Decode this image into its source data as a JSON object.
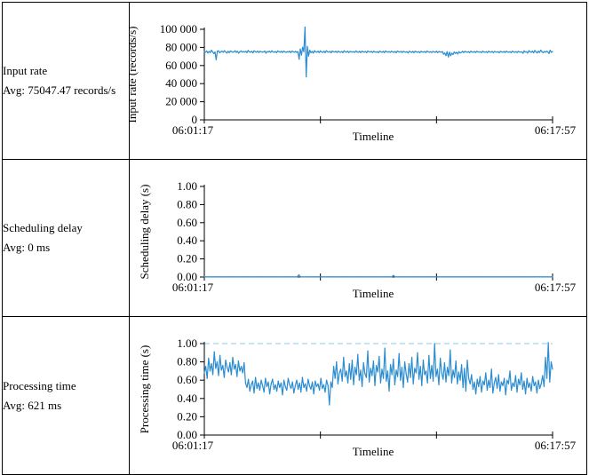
{
  "rows": [
    {
      "metric": "Input rate",
      "avg": "Avg: 75047.47 records/s",
      "chart_data": {
        "type": "line",
        "ylabel": "Input rate (records/s)",
        "xlabel": "Timeline",
        "x_start": "06:01:17",
        "x_end": "06:17:57",
        "ylim": [
          0,
          100000
        ],
        "yticks": [
          0,
          20000,
          40000,
          60000,
          80000,
          100000
        ],
        "ytick_labels": [
          "0",
          "20 000",
          "40 000",
          "60 000",
          "80 000",
          "100 000"
        ],
        "threshold": null,
        "color": "#2b8cd0",
        "series": [
          {
            "values": [
              75200,
              74800,
              76100,
              73900,
              75600,
              74300,
              76800,
              75100,
              73200,
              74900,
              66500,
              75800,
              76200,
              74100,
              75300,
              75900,
              74600,
              76400,
              75000,
              73800,
              75700,
              74200,
              76000,
              75400,
              74700,
              75100,
              76300,
              74500,
              75800,
              73600,
              75200,
              76100,
              74800,
              75500,
              74900,
              75700,
              74300,
              76600,
              75100,
              74600,
              75800,
              74000,
              76200,
              75300,
              74700,
              75900,
              74400,
              75600,
              75200,
              74800,
              75100,
              76000,
              73700,
              75400,
              74900,
              75800,
              74500,
              76300,
              75000,
              74600,
              75500,
              74200,
              76100,
              75300,
              74800,
              75700,
              74400,
              75900,
              75100,
              74600,
              75300,
              74900,
              75800,
              74300,
              76000,
              75200,
              74700,
              75600,
              74500,
              75400,
              67000,
              78200,
              71500,
              80000,
              75300,
              102500,
              47500,
              81000,
              70500,
              76800,
              74200,
              75600,
              73800,
              76400,
              75100,
              74700,
              75900,
              74300,
              76100,
              75000,
              74500,
              75800,
              74200,
              76300,
              75200,
              74800,
              75600,
              74100,
              76000,
              75300,
              74900,
              75700,
              74400,
              75800,
              75000,
              74600,
              75500,
              74200,
              76200,
              75100,
              74700,
              75900,
              74300,
              75600,
              75200,
              74800,
              75400,
              74500,
              76100,
              75000,
              74600,
              75700,
              74300,
              75900,
              75100,
              74800,
              75500,
              74200,
              76000,
              75300,
              74900,
              75600,
              74400,
              75800,
              75000,
              74700,
              75300,
              74100,
              75900,
              75200,
              74600,
              75700,
              74300,
              76100,
              75100,
              74800,
              75400,
              74500,
              75800,
              75000,
              74600,
              75500,
              74200,
              76000,
              75300,
              74900,
              75600,
              74400,
              75700,
              75100,
              74700,
              75300,
              74000,
              75800,
              75200,
              74500,
              75600,
              74200,
              75900,
              75000,
              74600,
              75400,
              74100,
              75700,
              75100,
              74800,
              75500,
              74300,
              76000,
              75200,
              74700,
              75300,
              74400,
              75600,
              75000,
              74600,
              75800,
              74200,
              75500,
              75100,
              74700,
              75400,
              72500,
              73800,
              71000,
              75200,
              69500,
              74800,
              70800,
              73600,
              72200,
              75000,
              73400,
              74600,
              72800,
              75400,
              73900,
              74500,
              75800,
              74300,
              75600,
              75100,
              74700,
              75300,
              74200,
              75900,
              75000,
              74600,
              75500,
              74400,
              75700,
              75100,
              74800,
              75200,
              74300,
              75800,
              75000,
              74600,
              75400,
              74200,
              75900,
              75100,
              74700,
              75600,
              74300,
              75500,
              75000,
              74800,
              75300,
              74100,
              75700,
              75200,
              74600,
              75500,
              74400,
              75900,
              75000,
              74700,
              75300,
              74200,
              75800,
              75100,
              74600,
              75400,
              74300,
              75700,
              75000,
              74800,
              75200,
              73500,
              76200,
              74900,
              75100,
              73800,
              76400,
              75200,
              74600,
              75900,
              74000,
              76600,
              75100,
              73900,
              75800,
              74400,
              77000,
              75300,
              74100,
              75500,
              74700,
              75800,
              75000,
              73300,
              76800,
              74600,
              75400
            ]
          }
        ]
      }
    },
    {
      "metric": "Scheduling delay",
      "avg": "Avg: 0 ms",
      "chart_data": {
        "type": "line",
        "ylabel": "Scheduling delay (s)",
        "xlabel": "Timeline",
        "x_start": "06:01:17",
        "x_end": "06:17:57",
        "ylim": [
          0,
          1
        ],
        "yticks": [
          0,
          0.2,
          0.4,
          0.6,
          0.8,
          1.0
        ],
        "ytick_labels": [
          "0.00",
          "0.20",
          "0.40",
          "0.60",
          "0.80",
          "1.00"
        ],
        "threshold": null,
        "color": "#2b8cd0",
        "series": [
          {
            "values": [
              0.002,
              0.001,
              0.002,
              0.001,
              0.002,
              0.001,
              0.002,
              0.001,
              0.002,
              0.001,
              0.002,
              0.001,
              0.002,
              0.001,
              0.002,
              0.001,
              0.002,
              0.001,
              0.002,
              0.001,
              0.002,
              0.001,
              0.002,
              0.001,
              0.002,
              0.001,
              0.002,
              0.001,
              0.002,
              0.001,
              0.002,
              0.001,
              0.002,
              0.001,
              0.002,
              0.001,
              0.002,
              0.001,
              0.002,
              0.001,
              0.002,
              0.001,
              0.002,
              0.001,
              0.002,
              0.001,
              0.002,
              0.001,
              0.002,
              0.001,
              0.002,
              0.001,
              0.002,
              0.001,
              0.002,
              0.001,
              0.002,
              0.001,
              0.002,
              0.001,
              0.025,
              0.001,
              0.002,
              0.001,
              0.002,
              0.001,
              0.002,
              0.001,
              0.002,
              0.001,
              0.002,
              0.001,
              0.002,
              0.001,
              0.002,
              0.001,
              0.002,
              0.001,
              0.002,
              0.001,
              0.002,
              0.001,
              0.002,
              0.001,
              0.002,
              0.001,
              0.002,
              0.001,
              0.002,
              0.001,
              0.002,
              0.001,
              0.002,
              0.001,
              0.002,
              0.001,
              0.002,
              0.001,
              0.002,
              0.001,
              0.002,
              0.001,
              0.002,
              0.001,
              0.002,
              0.001,
              0.002,
              0.001,
              0.002,
              0.001,
              0.002,
              0.001,
              0.002,
              0.001,
              0.002,
              0.001,
              0.002,
              0.001,
              0.002,
              0.001,
              0.018,
              0.001,
              0.002,
              0.001,
              0.002,
              0.001,
              0.002,
              0.001,
              0.002,
              0.001,
              0.002,
              0.001,
              0.002,
              0.001,
              0.002,
              0.001,
              0.002,
              0.001,
              0.002,
              0.001,
              0.002,
              0.001,
              0.002,
              0.001,
              0.002,
              0.001,
              0.002,
              0.001,
              0.002,
              0.001,
              0.002,
              0.001,
              0.002,
              0.001,
              0.002,
              0.001,
              0.002,
              0.001,
              0.002,
              0.001,
              0.002,
              0.001,
              0.002,
              0.001,
              0.002,
              0.001,
              0.002,
              0.001,
              0.002,
              0.001,
              0.002,
              0.001,
              0.002,
              0.001,
              0.002,
              0.001,
              0.002,
              0.001,
              0.002,
              0.001,
              0.002,
              0.001,
              0.002,
              0.001,
              0.002,
              0.001,
              0.002,
              0.001,
              0.002,
              0.001,
              0.002,
              0.001,
              0.002,
              0.001,
              0.002,
              0.001,
              0.002,
              0.001,
              0.002,
              0.001,
              0.002,
              0.001,
              0.002,
              0.001,
              0.002,
              0.001,
              0.002,
              0.001,
              0.002,
              0.001,
              0.002,
              0.001,
              0.002,
              0.001,
              0.002,
              0.001,
              0.002,
              0.001,
              0.002,
              0.001,
              0.002,
              0.001
            ]
          }
        ]
      }
    },
    {
      "metric": "Processing time",
      "avg": "Avg: 621 ms",
      "chart_data": {
        "type": "line",
        "ylabel": "Processing time (s)",
        "xlabel": "Timeline",
        "x_start": "06:01:17",
        "x_end": "06:17:57",
        "ylim": [
          0,
          1
        ],
        "yticks": [
          0,
          0.2,
          0.4,
          0.6,
          0.8,
          1.0
        ],
        "ytick_labels": [
          "0.00",
          "0.20",
          "0.40",
          "0.60",
          "0.80",
          "1.00"
        ],
        "threshold": 1.0,
        "color": "#2b8cd0",
        "series": [
          {
            "values": [
              0.68,
              0.75,
              0.62,
              0.84,
              0.7,
              0.78,
              0.66,
              0.91,
              0.73,
              0.8,
              0.65,
              0.87,
              0.71,
              0.76,
              0.63,
              0.82,
              0.74,
              0.69,
              0.79,
              0.66,
              0.85,
              0.72,
              0.77,
              0.64,
              0.81,
              0.7,
              0.75,
              0.68,
              0.79,
              0.57,
              0.52,
              0.61,
              0.48,
              0.55,
              0.59,
              0.46,
              0.63,
              0.51,
              0.57,
              0.49,
              0.6,
              0.54,
              0.47,
              0.62,
              0.53,
              0.58,
              0.45,
              0.56,
              0.61,
              0.5,
              0.55,
              0.48,
              0.59,
              0.52,
              0.57,
              0.44,
              0.6,
              0.53,
              0.49,
              0.62,
              0.55,
              0.51,
              0.58,
              0.46,
              0.54,
              0.6,
              0.5,
              0.57,
              0.47,
              0.63,
              0.52,
              0.56,
              0.48,
              0.61,
              0.54,
              0.5,
              0.58,
              0.45,
              0.59,
              0.53,
              0.56,
              0.49,
              0.62,
              0.51,
              0.55,
              0.47,
              0.6,
              0.54,
              0.33,
              0.58,
              0.52,
              0.75,
              0.62,
              0.8,
              0.56,
              0.68,
              0.72,
              0.59,
              0.85,
              0.64,
              0.7,
              0.57,
              0.78,
              0.61,
              0.82,
              0.55,
              0.74,
              0.66,
              0.88,
              0.6,
              0.71,
              0.53,
              0.79,
              0.67,
              0.63,
              0.92,
              0.58,
              0.73,
              0.65,
              0.81,
              0.54,
              0.76,
              0.69,
              0.86,
              0.57,
              0.72,
              0.62,
              0.95,
              0.59,
              0.7,
              0.48,
              0.77,
              0.66,
              0.83,
              0.55,
              0.71,
              0.64,
              0.89,
              0.6,
              0.74,
              0.52,
              0.8,
              0.67,
              0.58,
              0.78,
              0.63,
              0.85,
              0.56,
              0.73,
              0.68,
              0.9,
              0.61,
              0.75,
              0.54,
              0.82,
              0.66,
              0.7,
              0.57,
              0.87,
              0.62,
              0.76,
              0.59,
              1.0,
              0.64,
              0.72,
              0.55,
              0.84,
              0.68,
              0.61,
              0.79,
              0.58,
              0.74,
              0.65,
              0.93,
              0.57,
              0.71,
              0.63,
              0.81,
              0.56,
              0.69,
              0.6,
              0.77,
              0.52,
              0.73,
              0.48,
              0.82,
              0.62,
              0.56,
              0.66,
              0.5,
              0.58,
              0.45,
              0.61,
              0.53,
              0.64,
              0.47,
              0.59,
              0.55,
              0.68,
              0.49,
              0.6,
              0.52,
              0.72,
              0.46,
              0.57,
              0.63,
              0.51,
              0.66,
              0.48,
              0.58,
              0.54,
              0.62,
              0.44,
              0.6,
              0.56,
              0.7,
              0.49,
              0.57,
              0.53,
              0.65,
              0.47,
              0.61,
              0.55,
              0.68,
              0.5,
              0.59,
              0.45,
              0.62,
              0.52,
              0.57,
              0.48,
              0.64,
              0.54,
              0.58,
              0.46,
              0.6,
              0.51,
              0.56,
              0.65,
              0.53,
              0.85,
              0.62,
              1.01,
              0.58,
              0.8,
              0.72
            ]
          }
        ]
      }
    }
  ]
}
